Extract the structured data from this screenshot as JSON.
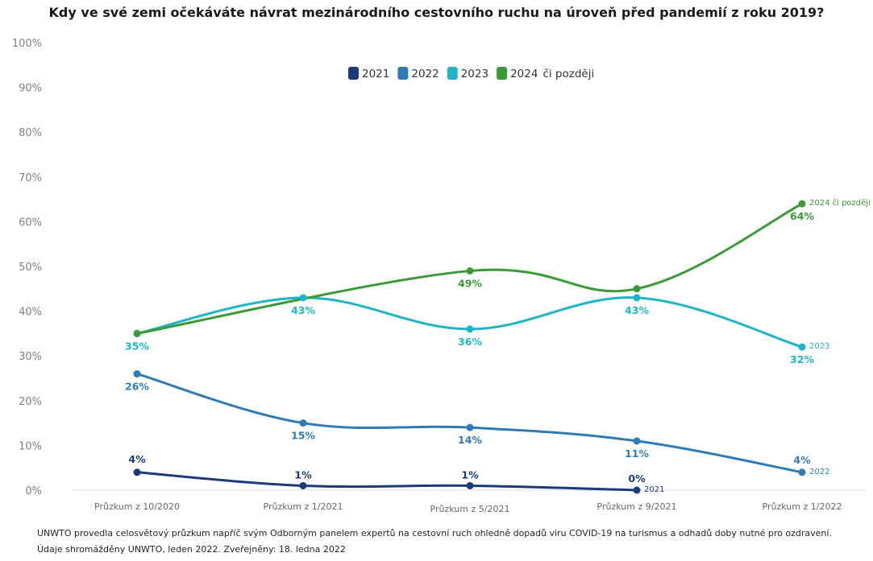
{
  "title": "Kdy ve své zemi očekáváte návrat mezinárodního cestovního ruchu na úroveň před pandemií z roku 2019?",
  "footnote": {
    "line1": "UNWTO provedla celosvětový průzkum napříč svým Odborným panelem expertů na cestovní ruch ohledně dopadů viru COVID-19 na turismus a odhadů doby nutné pro ozdravení.",
    "line2": "Údaje shromážděny UNWTO, leden 2022. Zveřejněny: 18. ledna 2022"
  },
  "legend": {
    "suffix": "či později"
  },
  "chart_data": {
    "type": "line",
    "categories": [
      "Průzkum z 10/2020",
      "Průzkum z 1/2021",
      "Průzkum z 5/2021",
      "Průzkum z 9/2021",
      "Průzkum z 1/2022"
    ],
    "y_ticks": [
      "0%",
      "10%",
      "20%",
      "30%",
      "40%",
      "50%",
      "60%",
      "70%",
      "80%",
      "90%",
      "100%"
    ],
    "ylim": [
      0,
      100
    ],
    "grid": false,
    "legend_position": "top-center",
    "series": [
      {
        "name": "2021",
        "color": "#1a3a7a",
        "values": [
          4,
          1,
          1,
          0,
          null
        ],
        "value_labels": [
          "4%",
          "1%",
          "1%",
          "0%",
          null
        ],
        "end_label": "2021",
        "end_index": 3
      },
      {
        "name": "2022",
        "color": "#2f7bb5",
        "values": [
          26,
          15,
          14,
          11,
          4
        ],
        "value_labels": [
          "26%",
          "15%",
          "14%",
          "11%",
          "4%"
        ],
        "end_label": "2022",
        "end_index": 4
      },
      {
        "name": "2023",
        "color": "#1fb5c7",
        "values": [
          35,
          43,
          36,
          43,
          32
        ],
        "value_labels": [
          "35%",
          "43%",
          "36%",
          "43%",
          "32%"
        ],
        "end_label": "2023",
        "end_index": 4
      },
      {
        "name": "2024",
        "color": "#3a9a35",
        "values": [
          35,
          null,
          49,
          45,
          64
        ],
        "value_labels": [
          null,
          null,
          "49%",
          null,
          "64%"
        ],
        "end_label": "2024 či později",
        "end_index": 4
      }
    ]
  }
}
